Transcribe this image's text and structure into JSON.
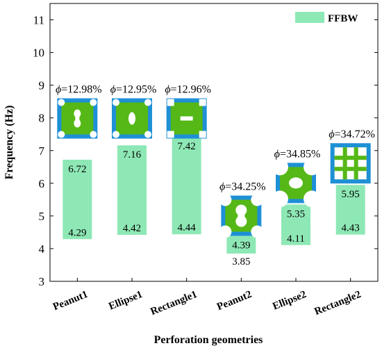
{
  "chart_data": {
    "type": "bar",
    "title": "",
    "xlabel": "Perforation geometries",
    "ylabel": "Frequency (Hz)",
    "ylim": [
      3,
      11.5
    ],
    "yticks": [
      "3",
      "4",
      "5",
      "6",
      "7",
      "8",
      "9",
      "10",
      "11"
    ],
    "grid": false,
    "legend": {
      "position": "top-right",
      "entries": [
        "FFBW"
      ]
    },
    "bar_color": "#8ee8b5",
    "categories": [
      "Peanut1",
      "Ellipse1",
      "Rectangle1",
      "Peanut2",
      "Ellipse2",
      "Rectangle2"
    ],
    "series": [
      {
        "name": "FFBW",
        "low": [
          4.29,
          4.42,
          4.44,
          3.85,
          4.11,
          4.43
        ],
        "high": [
          6.72,
          7.16,
          7.42,
          4.39,
          5.35,
          5.95
        ],
        "low_labels": [
          "4.29",
          "4.42",
          "4.44",
          "3.85",
          "4.11",
          "4.43"
        ],
        "high_labels": [
          "6.72",
          "7.16",
          "7.42",
          "4.39",
          "5.35",
          "5.95"
        ]
      }
    ],
    "annotations": {
      "porosity_labels": [
        "=12.98%",
        "=12.95%",
        "=12.96%",
        "=34.25%",
        "=34.85%",
        "=34.72%"
      ],
      "porosity_symbol": "ϕ",
      "cell_shapes": [
        "peanut",
        "ellipse",
        "rectangle",
        "peanut",
        "ellipse",
        "rectangle"
      ],
      "cell_frame_color": "#1e90d6",
      "cell_fill_color": "#55b816"
    }
  }
}
